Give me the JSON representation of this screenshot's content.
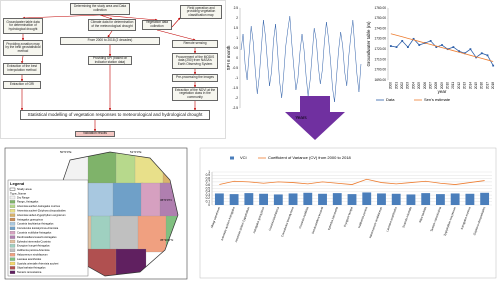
{
  "diagram": {
    "nodes": [
      {
        "label": "Determining the study area and Data collection"
      },
      {
        "label": "Groundwater table data for determination of hydrological drought"
      },
      {
        "label": "Climate data for determination of the meteorological drought"
      },
      {
        "label": "Vegetation data collection"
      },
      {
        "label": "Field operation and providing vegetation classification map"
      },
      {
        "label": "From 2000 to 2018 (2 decades)"
      },
      {
        "label": "Providing zonation map by the best geostatistical method"
      },
      {
        "label": "Extraction of the best interpolation method"
      },
      {
        "label": "Extraction of GRI"
      },
      {
        "label": "Providing SPI (based on indicator station data)"
      },
      {
        "label": "Remote sensing"
      },
      {
        "label": "Procurement of the MODIS data (250) from NASA's Earth Observing System"
      },
      {
        "label": "Pre-processing the images"
      },
      {
        "label": "Extraction of the NDVI at the vegetation class in the community"
      },
      {
        "label": "Statistical modelling of vegetation responses to meteorological and hydrological drought"
      },
      {
        "label": "Validation results"
      }
    ]
  },
  "map": {
    "legend_title": "Legend",
    "study_area": "Study area",
    "type_heading": "Type_Name",
    "lon_labels": [
      "50°0'0\"E",
      "51°0'0\"E"
    ],
    "lat_labels": [
      "36°0'0\"N",
      "35°30'0\"N"
    ],
    "classes": [
      {
        "name": "Dry Range",
        "color": "#f2f2f2"
      },
      {
        "name": "Range_Astragalus",
        "color": "#7fb36a"
      },
      {
        "name": "Artemisia aucheri-Astragalus murinus",
        "color": "#b7d98c"
      },
      {
        "name": "Artemisia aucheri-Ziziphora clinopodioides",
        "color": "#e8e08a"
      },
      {
        "name": "Artemisia sieberi-Zygophyllum eurypterum",
        "color": "#d9b36b"
      },
      {
        "name": "Astragalus gossypinus",
        "color": "#c98f5c"
      },
      {
        "name": "Cousinia bachtiarica-Astragalus",
        "color": "#a8c8e0"
      },
      {
        "name": "Convolvulus leiocalycinus-Artemisia",
        "color": "#6fa0c8"
      },
      {
        "name": "Cousinia multiloba-Astragalus",
        "color": "#d6a0c0"
      },
      {
        "name": "Dendrostellera lessertii-Astragalus",
        "color": "#b07fb0"
      },
      {
        "name": "Ephedra intermedia-Cousinia",
        "color": "#e0c0a0"
      },
      {
        "name": "Eryngium bungei-Astragalus",
        "color": "#9fd0c0"
      },
      {
        "name": "Hulthemia persica-Artemisia",
        "color": "#c0c0c0"
      },
      {
        "name": "Halocnemum strobilaceum",
        "color": "#f0a080"
      },
      {
        "name": "Launaea acanthodes",
        "color": "#80c080"
      },
      {
        "name": "Scariola orientalis-Artemisia aucheri",
        "color": "#f5d76e"
      },
      {
        "name": "Stipa barbata-Astragalus",
        "color": "#b05050"
      },
      {
        "name": "Tamarix ramosissima",
        "color": "#602060"
      }
    ]
  },
  "chart_data": [
    {
      "type": "line",
      "y_label": "SPI 6 month",
      "x_label": "Years",
      "ylim": [
        -2.5,
        2.5
      ],
      "yticks": [
        2.5,
        2,
        1.5,
        1,
        0.5,
        0,
        -0.5,
        -1,
        -1.5,
        -2,
        -2.5
      ],
      "grid": false,
      "series": [
        {
          "name": "SPI",
          "color": "#2e5fa8",
          "values": [
            0.4,
            1.2,
            -0.3,
            -1.1,
            0.2,
            1.6,
            0.8,
            -0.6,
            -1.8,
            -0.9,
            0.5,
            1.9,
            1.1,
            -0.2,
            -1.4,
            -0.7,
            0.9,
            1.7,
            0.3,
            -1.2,
            -2.0,
            -0.8,
            0.6,
            1.4,
            2.1,
            0.7,
            -0.5,
            -1.6,
            -1.0,
            0.3,
            1.2,
            0.4,
            -0.9,
            -1.9,
            -1.1,
            0.2,
            1.5,
            0.9,
            -0.4,
            -1.3,
            -0.6,
            0.8,
            1.8,
            1.0,
            -0.1,
            -1.5,
            -2.2,
            -0.9,
            0.4,
            1.3,
            0.6,
            -0.7,
            -1.4,
            0.1,
            1.1,
            1.9,
            0.5,
            -0.8,
            -1.7,
            -0.3
          ]
        }
      ]
    },
    {
      "type": "line",
      "y_label": "Groundwater table (m)",
      "x_label": "year",
      "categories": [
        "2000",
        "2001",
        "2002",
        "2003",
        "2004",
        "2005",
        "2006",
        "2007",
        "2008",
        "2009",
        "2010",
        "2011",
        "2012",
        "2013",
        "2014",
        "2015",
        "2016",
        "2017",
        "2018"
      ],
      "ylim": [
        1690,
        1760
      ],
      "yticks": [
        {
          "value": 1690,
          "label": "1690.00"
        },
        {
          "value": 1700,
          "label": "1700.00"
        },
        {
          "value": 1710,
          "label": "1710.00"
        },
        {
          "value": 1720,
          "label": "1720.00"
        },
        {
          "value": 1730,
          "label": "1730.00"
        },
        {
          "value": 1740,
          "label": "1740.00"
        },
        {
          "value": 1750,
          "label": "1750.00"
        },
        {
          "value": 1760,
          "label": "1760.00"
        }
      ],
      "grid": false,
      "legend": "bottom",
      "series": [
        {
          "name": "Data",
          "color": "#2e5fa8",
          "values": [
            1723,
            1722,
            1728,
            1722,
            1730,
            1724,
            1726,
            1728,
            1722,
            1724,
            1720,
            1722,
            1718,
            1716,
            1720,
            1712,
            1716,
            1714,
            1704
          ]
        },
        {
          "name": "Sen's estimate",
          "color": "#ed7d31",
          "values": [
            1735,
            1733.5,
            1732,
            1730.5,
            1729,
            1727.5,
            1726,
            1724.5,
            1723,
            1721.5,
            1720,
            1718.5,
            1717,
            1715.5,
            1714,
            1712.5,
            1711,
            1709.5,
            1708
          ]
        }
      ]
    },
    {
      "type": "bar_line",
      "ylim": [
        0,
        1
      ],
      "yticks": [
        0,
        0.1,
        0.2,
        0.3,
        0.4,
        0.5,
        0.6,
        0.7,
        0.8,
        0.9,
        1
      ],
      "grid": true,
      "legend": "top",
      "categories": [
        "Alhagi camelorum",
        "Artemisia aucheri-Astragalus",
        "Artemisia sieberi-Zygophyllum",
        "Astragalus gossypinus",
        "Cousinia bachtiarica",
        "Convolvulus leiocalycinus",
        "Cousinia multiloba",
        "Dendrostellera lessertii",
        "Ephedra intermedia",
        "Eryngium bungei",
        "Hulthemia persica",
        "Halocnemum strobilaceum",
        "Launaea acanthodes",
        "Scariola orientalis",
        "Stipa barbata",
        "Tamarix ramosissima",
        "Zygophyllum eurypterum",
        "Astragalus murinus",
        "Ziziphora clinopodioides"
      ],
      "series": [
        {
          "name": "VCI",
          "type": "bar",
          "color": "#4a7ebb",
          "values": [
            0.35,
            0.33,
            0.36,
            0.34,
            0.32,
            0.35,
            0.37,
            0.34,
            0.36,
            0.33,
            0.38,
            0.35,
            0.34,
            0.32,
            0.36,
            0.33,
            0.35,
            0.34,
            0.37
          ]
        },
        {
          "name": "Coefficient of Variance (CV) from 2000 to 2018",
          "type": "line",
          "color": "#ed7d31",
          "values": [
            0.62,
            0.72,
            0.7,
            0.66,
            0.7,
            0.68,
            0.64,
            0.7,
            0.66,
            0.62,
            0.78,
            0.68,
            0.64,
            0.68,
            0.72,
            0.66,
            0.62,
            0.68,
            0.74
          ]
        }
      ]
    }
  ]
}
